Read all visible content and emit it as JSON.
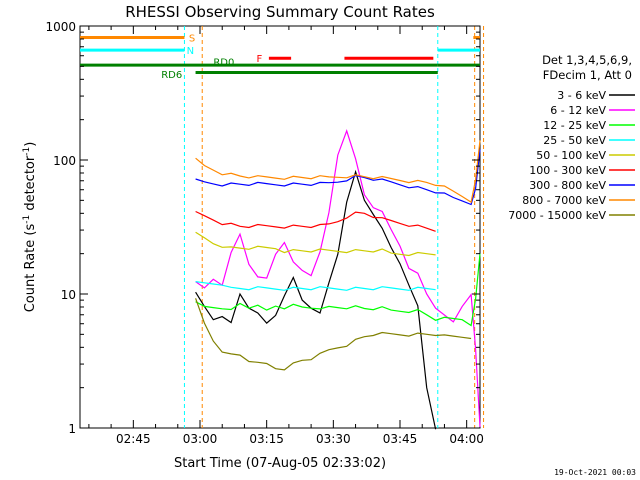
{
  "chart_data": {
    "type": "line",
    "title": "RHESSI Observing Summary Count Rates",
    "xlabel": "Start Time (07-Aug-05 02:33:02)",
    "ylabel_main": "Count Rate (s",
    "ylabel_sup1": "-1",
    "ylabel_mid": " detector",
    "ylabel_sup2": "-1",
    "ylabel_end": ")",
    "y_scale": "log",
    "ylim": [
      1,
      1000
    ],
    "xlim_minutes": [
      33.0,
      123.0
    ],
    "x_ticks": [
      {
        "minute": 45,
        "label": "02:45"
      },
      {
        "minute": 60,
        "label": "03:00"
      },
      {
        "minute": 75,
        "label": "03:15"
      },
      {
        "minute": 90,
        "label": "03:30"
      },
      {
        "minute": 105,
        "label": "03:45"
      },
      {
        "minute": 120,
        "label": "04:00"
      }
    ],
    "y_ticks": [
      {
        "value": 1,
        "label": "1"
      },
      {
        "value": 10,
        "label": "10"
      },
      {
        "value": 100,
        "label": "100"
      },
      {
        "value": 1000,
        "label": "1000"
      }
    ],
    "legend_header": [
      "Det 1,3,4,5,6,9,",
      "FDecim 1, Att 0"
    ],
    "series": [
      {
        "name": "3 - 6 keV",
        "color": "#000000",
        "points": [
          [
            59,
            10
          ],
          [
            61,
            8
          ],
          [
            63,
            6.5
          ],
          [
            65,
            7
          ],
          [
            67,
            6
          ],
          [
            69,
            10
          ],
          [
            71,
            8
          ],
          [
            73,
            7
          ],
          [
            75,
            6
          ],
          [
            77,
            7
          ],
          [
            79,
            10
          ],
          [
            81,
            13
          ],
          [
            83,
            9
          ],
          [
            85,
            8
          ],
          [
            87,
            7
          ],
          [
            89,
            12
          ],
          [
            91,
            20
          ],
          [
            93,
            50
          ],
          [
            95,
            80
          ],
          [
            97,
            50
          ],
          [
            99,
            40
          ],
          [
            101,
            30
          ],
          [
            103,
            22
          ],
          [
            105,
            17
          ],
          [
            107,
            12
          ],
          [
            109,
            8
          ],
          [
            111,
            2
          ],
          [
            113,
            1
          ]
        ]
      },
      {
        "name": "6 - 12 keV",
        "color": "#ff00ff",
        "points": [
          [
            59,
            12
          ],
          [
            61,
            11
          ],
          [
            63,
            13
          ],
          [
            65,
            12
          ],
          [
            67,
            20
          ],
          [
            69,
            28
          ],
          [
            71,
            17
          ],
          [
            73,
            13
          ],
          [
            75,
            13
          ],
          [
            77,
            20
          ],
          [
            79,
            25
          ],
          [
            81,
            17
          ],
          [
            83,
            15
          ],
          [
            85,
            14
          ],
          [
            87,
            20
          ],
          [
            89,
            40
          ],
          [
            91,
            110
          ],
          [
            93,
            170
          ],
          [
            95,
            100
          ],
          [
            97,
            55
          ],
          [
            99,
            45
          ],
          [
            101,
            40
          ],
          [
            103,
            30
          ],
          [
            105,
            23
          ],
          [
            107,
            16
          ],
          [
            109,
            14
          ],
          [
            111,
            10
          ],
          [
            113,
            8
          ],
          [
            117,
            6
          ],
          [
            119,
            8
          ],
          [
            121,
            10
          ],
          [
            122,
            4
          ],
          [
            123,
            1
          ]
        ]
      },
      {
        "name": "12 - 25 keV",
        "color": "#00ff00",
        "points": [
          [
            59,
            8.5
          ],
          [
            61,
            8
          ],
          [
            63,
            8
          ],
          [
            65,
            8
          ],
          [
            67,
            7.5
          ],
          [
            69,
            8.5
          ],
          [
            71,
            8
          ],
          [
            73,
            8
          ],
          [
            75,
            7.5
          ],
          [
            77,
            8.2
          ],
          [
            79,
            8
          ],
          [
            81,
            8.2
          ],
          [
            83,
            8
          ],
          [
            85,
            8
          ],
          [
            87,
            7.5
          ],
          [
            89,
            8
          ],
          [
            91,
            8
          ],
          [
            93,
            8
          ],
          [
            95,
            8
          ],
          [
            97,
            7.8
          ],
          [
            99,
            7.8
          ],
          [
            101,
            7.8
          ],
          [
            103,
            7.5
          ],
          [
            105,
            7.5
          ],
          [
            107,
            7.5
          ],
          [
            109,
            7.5
          ],
          [
            111,
            7
          ],
          [
            113,
            6.5
          ],
          [
            115,
            6.5
          ],
          [
            117,
            6.5
          ],
          [
            119,
            6.5
          ],
          [
            121,
            6
          ],
          [
            122,
            9
          ],
          [
            123,
            20
          ]
        ]
      },
      {
        "name": "25 - 50 keV",
        "color": "#00ffff",
        "points": [
          [
            59,
            12
          ],
          [
            61,
            12
          ],
          [
            63,
            12
          ],
          [
            65,
            12
          ],
          [
            67,
            11
          ],
          [
            69,
            11
          ],
          [
            71,
            11
          ],
          [
            73,
            11
          ],
          [
            75,
            11
          ],
          [
            77,
            11
          ],
          [
            79,
            11
          ],
          [
            81,
            11
          ],
          [
            83,
            11
          ],
          [
            85,
            11
          ],
          [
            87,
            11
          ],
          [
            89,
            11
          ],
          [
            91,
            11
          ],
          [
            93,
            11
          ],
          [
            95,
            11
          ],
          [
            97,
            11
          ],
          [
            99,
            11
          ],
          [
            101,
            11
          ],
          [
            103,
            11
          ],
          [
            105,
            11
          ],
          [
            107,
            11
          ],
          [
            109,
            11
          ],
          [
            111,
            11
          ],
          [
            113,
            11
          ]
        ]
      },
      {
        "name": "50 - 100 keV",
        "color": "#cccc00",
        "points": [
          [
            59,
            28
          ],
          [
            61,
            26
          ],
          [
            63,
            24
          ],
          [
            65,
            23
          ],
          [
            67,
            22
          ],
          [
            69,
            22
          ],
          [
            71,
            22
          ],
          [
            73,
            22
          ],
          [
            75,
            22
          ],
          [
            77,
            22
          ],
          [
            79,
            21
          ],
          [
            81,
            21
          ],
          [
            83,
            21
          ],
          [
            85,
            21
          ],
          [
            87,
            21
          ],
          [
            89,
            21
          ],
          [
            91,
            21
          ],
          [
            93,
            21
          ],
          [
            95,
            21
          ],
          [
            97,
            21
          ],
          [
            99,
            21
          ],
          [
            101,
            21
          ],
          [
            103,
            20
          ],
          [
            105,
            20
          ],
          [
            107,
            20
          ],
          [
            109,
            20
          ],
          [
            111,
            20
          ],
          [
            113,
            20
          ]
        ]
      },
      {
        "name": "100 - 300 keV",
        "color": "#ff0000",
        "points": [
          [
            59,
            40
          ],
          [
            61,
            38
          ],
          [
            63,
            36
          ],
          [
            65,
            34
          ],
          [
            67,
            33
          ],
          [
            69,
            32
          ],
          [
            71,
            32
          ],
          [
            73,
            32
          ],
          [
            75,
            32
          ],
          [
            77,
            32
          ],
          [
            79,
            32
          ],
          [
            81,
            32
          ],
          [
            83,
            32
          ],
          [
            85,
            32
          ],
          [
            87,
            32
          ],
          [
            89,
            33
          ],
          [
            91,
            35
          ],
          [
            93,
            38
          ],
          [
            95,
            40
          ],
          [
            97,
            40
          ],
          [
            99,
            38
          ],
          [
            101,
            36
          ],
          [
            103,
            35
          ],
          [
            105,
            34
          ],
          [
            107,
            33
          ],
          [
            109,
            32
          ],
          [
            111,
            31
          ],
          [
            113,
            30
          ]
        ]
      },
      {
        "name": "300 - 800 keV",
        "color": "#0000ff",
        "points": [
          [
            59,
            70
          ],
          [
            61,
            68
          ],
          [
            63,
            67
          ],
          [
            65,
            66
          ],
          [
            67,
            66
          ],
          [
            69,
            66
          ],
          [
            71,
            66
          ],
          [
            73,
            66
          ],
          [
            75,
            66
          ],
          [
            77,
            66
          ],
          [
            79,
            66
          ],
          [
            81,
            66
          ],
          [
            83,
            66
          ],
          [
            85,
            66
          ],
          [
            87,
            66
          ],
          [
            89,
            67
          ],
          [
            91,
            69
          ],
          [
            93,
            72
          ],
          [
            95,
            75
          ],
          [
            97,
            74
          ],
          [
            99,
            72
          ],
          [
            101,
            70
          ],
          [
            103,
            68
          ],
          [
            105,
            66
          ],
          [
            107,
            64
          ],
          [
            109,
            62
          ],
          [
            111,
            60
          ],
          [
            113,
            58
          ],
          [
            115,
            55
          ],
          [
            117,
            52
          ],
          [
            119,
            50
          ],
          [
            121,
            48
          ],
          [
            122,
            60
          ],
          [
            123,
            120
          ]
        ]
      },
      {
        "name": "800 - 7000 keV",
        "color": "#ff8800",
        "points": [
          [
            59,
            100
          ],
          [
            61,
            90
          ],
          [
            63,
            85
          ],
          [
            65,
            80
          ],
          [
            67,
            78
          ],
          [
            69,
            76
          ],
          [
            71,
            75
          ],
          [
            73,
            74
          ],
          [
            75,
            74
          ],
          [
            77,
            74
          ],
          [
            79,
            74
          ],
          [
            81,
            74
          ],
          [
            83,
            74
          ],
          [
            85,
            74
          ],
          [
            87,
            74
          ],
          [
            89,
            74
          ],
          [
            91,
            75
          ],
          [
            93,
            76
          ],
          [
            95,
            76
          ],
          [
            97,
            75
          ],
          [
            99,
            74
          ],
          [
            101,
            73
          ],
          [
            103,
            72
          ],
          [
            105,
            71
          ],
          [
            107,
            70
          ],
          [
            109,
            69
          ],
          [
            111,
            68
          ],
          [
            113,
            66
          ],
          [
            115,
            62
          ],
          [
            117,
            58
          ],
          [
            119,
            54
          ],
          [
            121,
            50
          ],
          [
            122,
            70
          ],
          [
            123,
            140
          ]
        ]
      },
      {
        "name": "7000 - 15000 keV",
        "color": "#808000",
        "points": [
          [
            59,
            9
          ],
          [
            61,
            6
          ],
          [
            63,
            4.5
          ],
          [
            65,
            3.8
          ],
          [
            67,
            3.5
          ],
          [
            69,
            3.5
          ],
          [
            71,
            3.2
          ],
          [
            73,
            3.0
          ],
          [
            75,
            3.0
          ],
          [
            77,
            2.8
          ],
          [
            79,
            2.8
          ],
          [
            81,
            3.0
          ],
          [
            83,
            3.2
          ],
          [
            85,
            3.3
          ],
          [
            87,
            3.5
          ],
          [
            89,
            3.8
          ],
          [
            91,
            4.0
          ],
          [
            93,
            4.2
          ],
          [
            95,
            4.5
          ],
          [
            97,
            4.8
          ],
          [
            99,
            5.0
          ],
          [
            101,
            5.0
          ],
          [
            103,
            5.0
          ],
          [
            105,
            5.0
          ],
          [
            107,
            5.0
          ],
          [
            109,
            5.0
          ],
          [
            111,
            5.0
          ],
          [
            113,
            5.0
          ],
          [
            115,
            4.8
          ],
          [
            117,
            4.8
          ],
          [
            119,
            4.8
          ],
          [
            121,
            4.8
          ]
        ]
      }
    ],
    "status_bars": [
      {
        "label": "S",
        "color": "#ff8800",
        "segments": [
          [
            33,
            56.5
          ],
          [
            121.5,
            123
          ]
        ],
        "level": 820
      },
      {
        "label": "N",
        "color": "#00ffff",
        "segments": [
          [
            33,
            56.5
          ],
          [
            113.5,
            123
          ]
        ],
        "level": 660
      },
      {
        "label": "F",
        "color": "#ff0000",
        "segments": [
          [
            75.5,
            80.5
          ],
          [
            92.5,
            112.5
          ]
        ],
        "level": 575
      },
      {
        "label": "RD0",
        "color": "#008000",
        "segments": [
          [
            33,
            113.5
          ],
          [
            113.5,
            123
          ]
        ],
        "level": 510
      },
      {
        "label": "RD6",
        "color": "#008000",
        "segments": [
          [
            59,
            113.5
          ]
        ],
        "level": 450
      }
    ],
    "night_intervals": [
      [
        33,
        56.5
      ],
      [
        113.5,
        123
      ]
    ],
    "saa_intervals": [],
    "footer_date": "19-Oct-2021 00:03"
  }
}
